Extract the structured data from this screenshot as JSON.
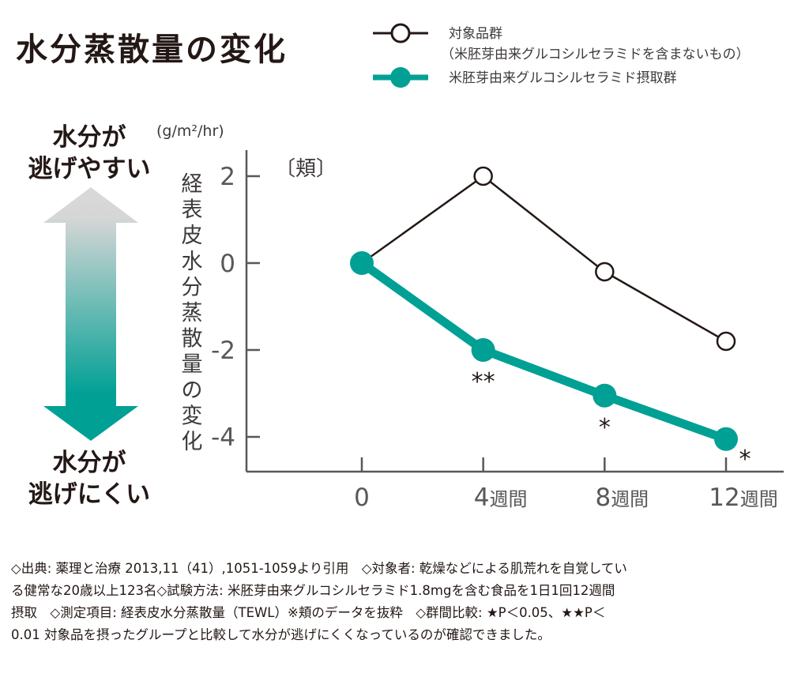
{
  "title": "水分蒸散量の変化",
  "side_labels": {
    "top_line1": "水分が",
    "top_line2": "逃げやすい",
    "bottom_line1": "水分が",
    "bottom_line2": "逃げにくい"
  },
  "colors": {
    "control": "#231815",
    "treatment": "#00a094",
    "axis": "#595757",
    "arrow_top": "#d6d6d6",
    "arrow_bottom": "#00a094"
  },
  "chart_data": {
    "type": "line",
    "title": "水分蒸散量の変化",
    "subtitle": "〔頬〕",
    "unit": "(g/m²/hr)",
    "ylabel": "経表皮水分蒸散量の変化",
    "xlabel": "",
    "x": [
      0,
      4,
      8,
      12
    ],
    "categories": [
      "0",
      "4週間",
      "8週間",
      "12週間"
    ],
    "xlim": [
      -3.8,
      13.9
    ],
    "ylim": [
      -4.8,
      2.6
    ],
    "yticks": [
      2,
      0,
      -2,
      -4
    ],
    "ytick_labels": [
      "2",
      "0",
      "-2",
      "-4"
    ],
    "grid": false,
    "legend_position": "top-right",
    "series": [
      {
        "name": "対象品群",
        "name_note": "（米胚芽由来グルコシルセラミドを含まないもの）",
        "marker": "open-circle",
        "values": [
          0,
          2.0,
          -0.2,
          -1.8
        ],
        "annotations": [
          "",
          "",
          "",
          ""
        ]
      },
      {
        "name": "米胚芽由来グルコシルセラミド摂取群",
        "marker": "filled-circle",
        "values": [
          0,
          -2.0,
          -3.05,
          -4.05
        ],
        "annotations": [
          "",
          "**",
          "*",
          "*"
        ]
      }
    ]
  },
  "footnote": {
    "lines": [
      "◇出典: 薬理と治療 2013,11（41）,1051-1059より引用　◇対象者: 乾燥などによる肌荒れを自覚してい",
      "る健常な20歳以上123名◇試験方法: 米胚芽由来グルコシルセラミド1.8mgを含む食品を1日1回12週間",
      "摂取　◇測定項目: 経表皮水分蒸散量（TEWL）※頬のデータを抜粋　◇群間比較: ★P＜0.05、★★P＜",
      "0.01 対象品を摂ったグループと比較して水分が逃げにくくなっているのが確認できました。"
    ]
  }
}
